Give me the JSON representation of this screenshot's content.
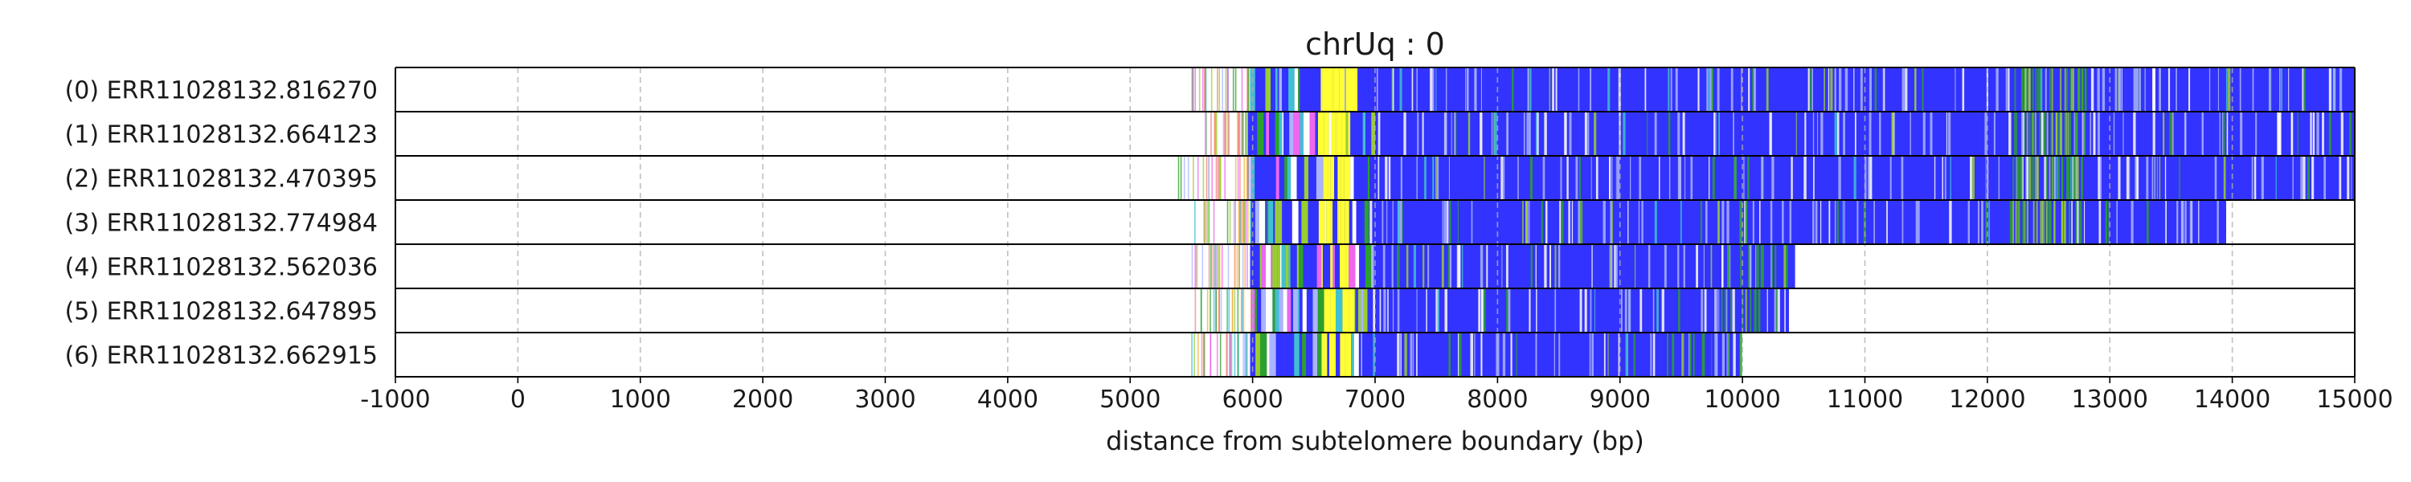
{
  "chart_data": {
    "type": "read-track",
    "title": "chrUq : 0",
    "xlabel": "distance from subtelomere boundary (bp)",
    "ylabel": "",
    "xlim": [
      -1000,
      15000
    ],
    "xticks": [
      -1000,
      0,
      1000,
      2000,
      3000,
      4000,
      5000,
      6000,
      7000,
      8000,
      9000,
      10000,
      11000,
      12000,
      13000,
      14000,
      15000
    ],
    "xtick_labels": [
      "-1000",
      "0",
      "1000",
      "2000",
      "3000",
      "4000",
      "5000",
      "6000",
      "7000",
      "8000",
      "9000",
      "10000",
      "11000",
      "12000",
      "13000",
      "14000",
      "15000"
    ],
    "grid": "vertical dashed",
    "subtelomere_boundary_bp": 6000,
    "colors": {
      "canonical_repeat": "#3333ff",
      "variant_light": "#aab4ff",
      "variant_green": "#2ca02c",
      "variant_lime": "#9acd32",
      "variant_cyan": "#40c0d0",
      "variant_yellow": "#ffff33",
      "variant_magenta": "#ee66ee",
      "variant_orange": "#f0b040",
      "variant_pink": "#f08080",
      "gap_white": "#ffffff"
    },
    "reads": [
      {
        "label": "(0) ERR11028132.816270",
        "start": 5500,
        "boundary": 5980,
        "repeat_start": 7000,
        "end": 15000
      },
      {
        "label": "(1) ERR11028132.664123",
        "start": 5550,
        "boundary": 5960,
        "repeat_start": 7000,
        "end": 15000
      },
      {
        "label": "(2) ERR11028132.470395",
        "start": 5350,
        "boundary": 5980,
        "repeat_start": 7000,
        "end": 15000
      },
      {
        "label": "(3) ERR11028132.774984",
        "start": 5520,
        "boundary": 5980,
        "repeat_start": 6950,
        "end": 13950
      },
      {
        "label": "(4) ERR11028132.562036",
        "start": 5500,
        "boundary": 5980,
        "repeat_start": 7000,
        "end": 10430
      },
      {
        "label": "(5) ERR11028132.647895",
        "start": 5520,
        "boundary": 5990,
        "repeat_start": 7000,
        "end": 10380
      },
      {
        "label": "(6) ERR11028132.662915",
        "start": 5480,
        "boundary": 5980,
        "repeat_start": 6980,
        "end": 9980
      }
    ]
  }
}
